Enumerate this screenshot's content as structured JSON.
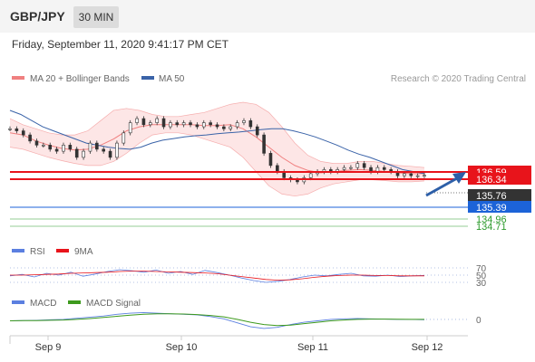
{
  "header": {
    "symbol": "GBP/JPY",
    "timeframe": "30 MIN",
    "datetime": "Friday, September 11, 2020 9:41:17 PM CET"
  },
  "credit": "Research © 2020 Trading Central",
  "colors": {
    "bollinger": "#f08080",
    "bollinger_fill": "#fde6e6",
    "ma50": "#3a63a8",
    "price": "#333333",
    "resistance": "#e8141b",
    "current": "#333333",
    "pivot": "#1c63d8",
    "support": "#2b9a2b",
    "rsi": "#5b7fe0",
    "rsi_ma": "#e8141b",
    "macd": "#5b7fe0",
    "macd_signal": "#3d9a1d"
  },
  "chart_data": [
    {
      "type": "line",
      "panel": "price",
      "legend": [
        "MA 20 + Bollinger Bands",
        "MA 50"
      ],
      "x_ticks": [
        "Sep 9",
        "Sep 10",
        "Sep 11",
        "Sep 12"
      ],
      "ylim": [
        134.4,
        137.95
      ],
      "price_series": [
        136.9,
        136.85,
        136.75,
        136.6,
        136.5,
        136.5,
        136.4,
        136.35,
        136.5,
        136.4,
        136.2,
        136.35,
        136.55,
        136.4,
        136.35,
        136.2,
        136.55,
        136.8,
        137.05,
        137.15,
        137.0,
        137.05,
        137.15,
        136.95,
        137.05,
        137.0,
        137.05,
        137.0,
        136.95,
        137.05,
        137.0,
        136.95,
        136.9,
        136.95,
        137.05,
        137.1,
        136.95,
        136.75,
        136.3,
        136.0,
        135.85,
        135.7,
        135.65,
        135.6,
        135.7,
        135.8,
        135.85,
        135.9,
        135.85,
        135.9,
        135.95,
        135.95,
        136.05,
        135.95,
        135.85,
        135.95,
        135.9,
        135.85,
        135.75,
        135.8,
        135.75,
        135.75,
        135.76
      ],
      "ma50_series": [
        137.35,
        137.25,
        137.1,
        136.95,
        136.85,
        136.75,
        136.65,
        136.55,
        136.5,
        136.45,
        136.42,
        136.4,
        136.45,
        136.55,
        136.62,
        136.66,
        136.7,
        136.73,
        136.75,
        136.78,
        136.8,
        136.82,
        136.85,
        136.88,
        136.9,
        136.9,
        136.85,
        136.78,
        136.7,
        136.6,
        136.5,
        136.38,
        136.28,
        136.2,
        136.1,
        136.0,
        135.9,
        135.85,
        135.8
      ],
      "bollinger": {
        "mid": [
          136.8,
          136.75,
          136.6,
          136.5,
          136.42,
          136.38,
          136.4,
          136.5,
          136.65,
          136.85,
          136.95,
          137.0,
          137.0,
          137.0,
          137.0,
          136.98,
          136.98,
          137.0,
          136.9,
          136.7,
          136.45,
          136.2,
          136.0,
          135.88,
          135.82,
          135.85,
          135.88,
          135.9,
          135.88,
          135.85,
          135.82,
          135.8,
          135.8
        ],
        "upper": [
          137.15,
          137.0,
          136.9,
          136.8,
          136.75,
          136.75,
          136.85,
          137.1,
          137.35,
          137.4,
          137.35,
          137.25,
          137.2,
          137.2,
          137.25,
          137.3,
          137.4,
          137.5,
          137.55,
          137.5,
          137.3,
          136.95,
          136.55,
          136.25,
          136.1,
          136.05,
          136.05,
          136.1,
          136.1,
          136.05,
          136.0,
          135.98,
          135.95
        ],
        "lower": [
          136.45,
          136.4,
          136.3,
          136.2,
          136.12,
          136.05,
          136.0,
          136.0,
          136.1,
          136.3,
          136.55,
          136.75,
          136.8,
          136.8,
          136.75,
          136.65,
          136.55,
          136.45,
          136.2,
          135.85,
          135.5,
          135.3,
          135.25,
          135.3,
          135.45,
          135.55,
          135.6,
          135.65,
          135.65,
          135.63,
          135.6,
          135.6,
          135.62
        ]
      },
      "levels": [
        {
          "label": "136.59",
          "kind": "resistance"
        },
        {
          "label": "136.34",
          "kind": "resistance"
        },
        {
          "label": "135.76",
          "kind": "current"
        },
        {
          "label": "135.39",
          "kind": "pivot"
        },
        {
          "label": "134.96",
          "kind": "support"
        },
        {
          "label": "134.71",
          "kind": "support"
        }
      ]
    },
    {
      "type": "line",
      "panel": "rsi",
      "legend": [
        "RSI",
        "9MA"
      ],
      "ylim": [
        20,
        80
      ],
      "y_ticks": [
        "70",
        "50",
        "30"
      ],
      "rsi": [
        48,
        52,
        45,
        55,
        50,
        58,
        47,
        53,
        60,
        65,
        62,
        58,
        64,
        55,
        60,
        52,
        63,
        57,
        50,
        42,
        35,
        30,
        33,
        38,
        45,
        50,
        48,
        52,
        55,
        48,
        47,
        50,
        46,
        48,
        49
      ],
      "rsi_ma": [
        50,
        50,
        51,
        52,
        53,
        55,
        56,
        57,
        58,
        60,
        61,
        61,
        60,
        59,
        58,
        57,
        56,
        54,
        50,
        46,
        42,
        38,
        36,
        37,
        40,
        44,
        47,
        49,
        50,
        50,
        49,
        49,
        48,
        48,
        48
      ]
    },
    {
      "type": "line",
      "panel": "macd",
      "legend": [
        "MACD",
        "MACD Signal"
      ],
      "ylim": [
        -0.45,
        0.35
      ],
      "y_ticks": [
        "0"
      ],
      "macd": [
        -0.05,
        -0.04,
        -0.03,
        -0.01,
        0.0,
        0.04,
        0.08,
        0.12,
        0.18,
        0.22,
        0.24,
        0.22,
        0.2,
        0.18,
        0.16,
        0.1,
        0.02,
        -0.12,
        -0.26,
        -0.32,
        -0.28,
        -0.18,
        -0.1,
        -0.05,
        0.0,
        0.02,
        0.03,
        0.02,
        0.01,
        0.0,
        0.0,
        -0.01
      ],
      "macd_signal": [
        -0.05,
        -0.045,
        -0.04,
        -0.03,
        -0.02,
        0.0,
        0.03,
        0.07,
        0.11,
        0.15,
        0.18,
        0.2,
        0.2,
        0.19,
        0.17,
        0.14,
        0.09,
        0.0,
        -0.1,
        -0.18,
        -0.22,
        -0.2,
        -0.15,
        -0.1,
        -0.05,
        -0.02,
        0.0,
        0.01,
        0.01,
        0.005,
        0.0,
        0.0
      ]
    }
  ]
}
